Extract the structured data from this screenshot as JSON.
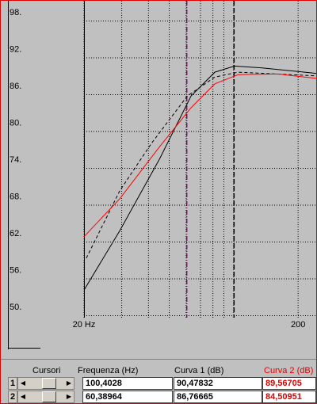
{
  "chart_data": {
    "type": "line",
    "xlog": true,
    "xlim": [
      20,
      243
    ],
    "ylim": [
      50,
      98
    ],
    "yticks": [
      {
        "value": 98,
        "label": "98."
      },
      {
        "value": 92,
        "label": "92."
      },
      {
        "value": 86,
        "label": "86."
      },
      {
        "value": 80,
        "label": "80."
      },
      {
        "value": 74,
        "label": "74."
      },
      {
        "value": 68,
        "label": "68."
      },
      {
        "value": 62,
        "label": "62."
      },
      {
        "value": 56,
        "label": "56."
      },
      {
        "value": 50,
        "label": "50."
      }
    ],
    "xticks": [
      {
        "value": 20,
        "label": "20 Hz"
      },
      200
    ],
    "minor_xticks": [
      30,
      40,
      50,
      60,
      70,
      80,
      90,
      100
    ],
    "grid": true,
    "cursors": [
      {
        "x": 60.38964,
        "color": "#800080",
        "dash": "6 2 1 2"
      },
      {
        "x": 100.4028,
        "color": "#000000",
        "dash": "6 3"
      }
    ],
    "series": [
      {
        "color": "#000000",
        "dash": "",
        "x": [
          20,
          29.4,
          45,
          63.2,
          81.7,
          101,
          136,
          243
        ],
        "values": [
          54.1,
          63.8,
          75.4,
          85.7,
          89.6,
          90.6,
          90.3,
          89.4
        ]
      },
      {
        "color": "#000000",
        "dash": "4 3",
        "x": [
          20.5,
          29.4,
          41.3,
          60.7,
          81.7,
          105,
          243
        ],
        "values": [
          59.3,
          70.3,
          78.0,
          85.7,
          88.8,
          89.6,
          89.0
        ]
      },
      {
        "color": "#ff0000",
        "dash": "",
        "x": [
          20,
          29.4,
          45,
          63.2,
          81.7,
          105,
          161,
          243
        ],
        "values": [
          62.8,
          69.0,
          77.4,
          83.8,
          87.7,
          89.2,
          89.3,
          88.6
        ]
      }
    ]
  },
  "panel": {
    "headers": [
      "Cursori",
      "Frequenza (Hz)",
      "Curva 1 (dB)",
      "Curva 2 (dB)"
    ],
    "rows": [
      {
        "label": "1",
        "frequency": "100,4028",
        "curve1": "90,47832",
        "curve2": "89,56705"
      },
      {
        "label": "2",
        "frequency": "60,38964",
        "curve1": "86,76665",
        "curve2": "84,50951"
      }
    ]
  }
}
